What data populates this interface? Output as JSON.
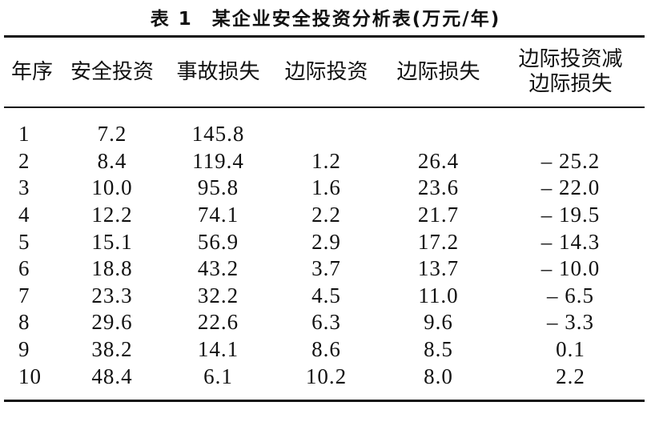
{
  "title": {
    "label": "表 1",
    "text": "某企业安全投资分析表(万元/年)"
  },
  "table": {
    "header": [
      "年序",
      "安全投资",
      "事故损失",
      "边际投资",
      "边际损失",
      "边际投资减\n边际损失"
    ],
    "rows": [
      [
        "1",
        "7.2",
        "145.8"
      ],
      [
        "2",
        "8.4",
        "119.4",
        "1.2",
        "26.4",
        "– 25.2"
      ],
      [
        "3",
        "10.0",
        "95.8",
        "1.6",
        "23.6",
        "– 22.0"
      ],
      [
        "4",
        "12.2",
        "74.1",
        "2.2",
        "21.7",
        "– 19.5"
      ],
      [
        "5",
        "15.1",
        "56.9",
        "2.9",
        "17.2",
        "– 14.3"
      ],
      [
        "6",
        "18.8",
        "43.2",
        "3.7",
        "13.7",
        "– 10.0"
      ],
      [
        "7",
        "23.3",
        "32.2",
        "4.5",
        "11.0",
        "– 6.5"
      ],
      [
        "8",
        "29.6",
        "22.6",
        "6.3",
        "9.6",
        "– 3.3"
      ],
      [
        "9",
        "38.2",
        "14.1",
        "8.6",
        "8.5",
        "0.1"
      ],
      [
        "10",
        "48.4",
        "6.1",
        "10.2",
        "8.0",
        "2.2"
      ]
    ]
  }
}
